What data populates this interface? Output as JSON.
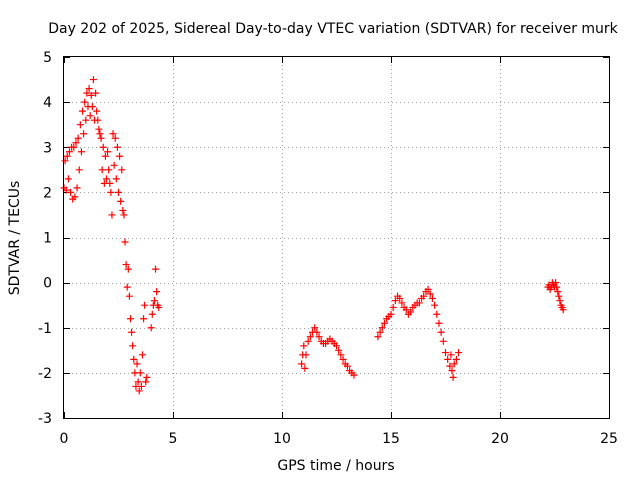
{
  "chart_data": {
    "type": "scatter",
    "title": "Day 202 of 2025, Sidereal Day-to-day VTEC variation (SDTVAR) for receiver murk",
    "xlabel": "GPS time / hours",
    "ylabel": "SDTVAR / TECUs",
    "xlim": [
      0,
      25
    ],
    "ylim": [
      -3,
      5
    ],
    "grid": true,
    "marker": "plus",
    "color": "#ff0000",
    "x_ticks": [
      "0",
      "5",
      "10",
      "15",
      "20",
      "25"
    ],
    "y_ticks": [
      "-3",
      "-2",
      "-1",
      "0",
      "1",
      "2",
      "3",
      "4",
      "5"
    ],
    "series": [
      {
        "name": "SDTVAR",
        "points": [
          [
            0.0,
            2.1
          ],
          [
            0.05,
            2.7
          ],
          [
            0.1,
            2.05
          ],
          [
            0.15,
            2.8
          ],
          [
            0.2,
            2.3
          ],
          [
            0.25,
            2.9
          ],
          [
            0.3,
            2.0
          ],
          [
            0.35,
            3.0
          ],
          [
            0.4,
            1.85
          ],
          [
            0.45,
            3.0
          ],
          [
            0.5,
            1.9
          ],
          [
            0.55,
            3.1
          ],
          [
            0.6,
            2.1
          ],
          [
            0.65,
            3.2
          ],
          [
            0.7,
            2.5
          ],
          [
            0.75,
            3.5
          ],
          [
            0.8,
            2.9
          ],
          [
            0.85,
            3.8
          ],
          [
            0.9,
            3.3
          ],
          [
            0.95,
            4.0
          ],
          [
            1.0,
            3.6
          ],
          [
            1.05,
            4.2
          ],
          [
            1.1,
            3.9
          ],
          [
            1.15,
            4.3
          ],
          [
            1.2,
            3.7
          ],
          [
            1.25,
            4.15
          ],
          [
            1.3,
            3.9
          ],
          [
            1.35,
            4.5
          ],
          [
            1.4,
            3.6
          ],
          [
            1.45,
            4.2
          ],
          [
            1.5,
            3.8
          ],
          [
            1.55,
            3.6
          ],
          [
            1.6,
            3.4
          ],
          [
            1.65,
            3.3
          ],
          [
            1.7,
            3.2
          ],
          [
            1.75,
            2.5
          ],
          [
            1.8,
            3.0
          ],
          [
            1.85,
            2.2
          ],
          [
            1.9,
            2.8
          ],
          [
            1.95,
            2.3
          ],
          [
            2.0,
            2.9
          ],
          [
            2.05,
            2.5
          ],
          [
            2.1,
            2.2
          ],
          [
            2.15,
            2.0
          ],
          [
            2.2,
            1.5
          ],
          [
            2.25,
            3.3
          ],
          [
            2.3,
            2.6
          ],
          [
            2.35,
            3.2
          ],
          [
            2.4,
            2.3
          ],
          [
            2.45,
            3.0
          ],
          [
            2.5,
            2.0
          ],
          [
            2.55,
            2.8
          ],
          [
            2.6,
            1.8
          ],
          [
            2.65,
            2.5
          ],
          [
            2.7,
            1.6
          ],
          [
            2.75,
            1.5
          ],
          [
            2.8,
            0.9
          ],
          [
            2.85,
            0.4
          ],
          [
            2.9,
            -0.1
          ],
          [
            2.95,
            0.3
          ],
          [
            3.0,
            -0.3
          ],
          [
            3.05,
            -0.8
          ],
          [
            3.1,
            -1.1
          ],
          [
            3.15,
            -1.4
          ],
          [
            3.2,
            -1.7
          ],
          [
            3.25,
            -2.0
          ],
          [
            3.3,
            -2.3
          ],
          [
            3.35,
            -1.8
          ],
          [
            3.4,
            -2.2
          ],
          [
            3.45,
            -2.4
          ],
          [
            3.5,
            -2.0
          ],
          [
            3.55,
            -2.3
          ],
          [
            3.6,
            -1.6
          ],
          [
            3.65,
            -0.8
          ],
          [
            3.7,
            -0.5
          ],
          [
            3.75,
            -2.2
          ],
          [
            3.8,
            -2.1
          ],
          [
            4.0,
            -1.0
          ],
          [
            4.05,
            -0.7
          ],
          [
            4.1,
            -0.5
          ],
          [
            4.15,
            -0.4
          ],
          [
            4.2,
            0.3
          ],
          [
            4.25,
            -0.2
          ],
          [
            4.3,
            -0.5
          ],
          [
            4.35,
            -0.55
          ],
          [
            10.9,
            -1.8
          ],
          [
            10.95,
            -1.6
          ],
          [
            11.0,
            -1.4
          ],
          [
            11.05,
            -1.9
          ],
          [
            11.1,
            -1.6
          ],
          [
            11.2,
            -1.3
          ],
          [
            11.3,
            -1.2
          ],
          [
            11.4,
            -1.1
          ],
          [
            11.5,
            -1.0
          ],
          [
            11.6,
            -1.1
          ],
          [
            11.7,
            -1.2
          ],
          [
            11.8,
            -1.3
          ],
          [
            11.9,
            -1.35
          ],
          [
            12.0,
            -1.35
          ],
          [
            12.1,
            -1.3
          ],
          [
            12.2,
            -1.25
          ],
          [
            12.3,
            -1.3
          ],
          [
            12.4,
            -1.35
          ],
          [
            12.5,
            -1.4
          ],
          [
            12.6,
            -1.5
          ],
          [
            12.7,
            -1.6
          ],
          [
            12.8,
            -1.7
          ],
          [
            12.9,
            -1.8
          ],
          [
            13.0,
            -1.85
          ],
          [
            13.1,
            -1.95
          ],
          [
            13.2,
            -2.0
          ],
          [
            13.3,
            -2.05
          ],
          [
            14.4,
            -1.2
          ],
          [
            14.5,
            -1.1
          ],
          [
            14.6,
            -1.0
          ],
          [
            14.7,
            -0.9
          ],
          [
            14.8,
            -0.8
          ],
          [
            14.9,
            -0.75
          ],
          [
            15.0,
            -0.7
          ],
          [
            15.1,
            -0.55
          ],
          [
            15.2,
            -0.4
          ],
          [
            15.3,
            -0.3
          ],
          [
            15.4,
            -0.35
          ],
          [
            15.5,
            -0.45
          ],
          [
            15.6,
            -0.55
          ],
          [
            15.7,
            -0.6
          ],
          [
            15.8,
            -0.7
          ],
          [
            15.9,
            -0.65
          ],
          [
            16.0,
            -0.55
          ],
          [
            16.1,
            -0.5
          ],
          [
            16.2,
            -0.45
          ],
          [
            16.3,
            -0.45
          ],
          [
            16.4,
            -0.35
          ],
          [
            16.5,
            -0.3
          ],
          [
            16.6,
            -0.2
          ],
          [
            16.7,
            -0.15
          ],
          [
            16.8,
            -0.25
          ],
          [
            16.9,
            -0.35
          ],
          [
            17.0,
            -0.5
          ],
          [
            17.1,
            -0.7
          ],
          [
            17.2,
            -0.9
          ],
          [
            17.3,
            -1.1
          ],
          [
            17.4,
            -1.3
          ],
          [
            17.5,
            -1.55
          ],
          [
            17.6,
            -1.7
          ],
          [
            17.7,
            -1.85
          ],
          [
            17.75,
            -1.6
          ],
          [
            17.8,
            -1.95
          ],
          [
            17.85,
            -2.1
          ],
          [
            17.9,
            -1.8
          ],
          [
            18.0,
            -1.7
          ],
          [
            18.1,
            -1.55
          ],
          [
            22.2,
            -0.1
          ],
          [
            22.25,
            -0.05
          ],
          [
            22.3,
            -0.15
          ],
          [
            22.35,
            -0.1
          ],
          [
            22.4,
            0.0
          ],
          [
            22.45,
            -0.05
          ],
          [
            22.5,
            -0.1
          ],
          [
            22.55,
            0.0
          ],
          [
            22.6,
            -0.1
          ],
          [
            22.65,
            -0.2
          ],
          [
            22.7,
            -0.3
          ],
          [
            22.75,
            -0.4
          ],
          [
            22.8,
            -0.5
          ],
          [
            22.85,
            -0.55
          ],
          [
            22.9,
            -0.6
          ]
        ]
      }
    ]
  }
}
